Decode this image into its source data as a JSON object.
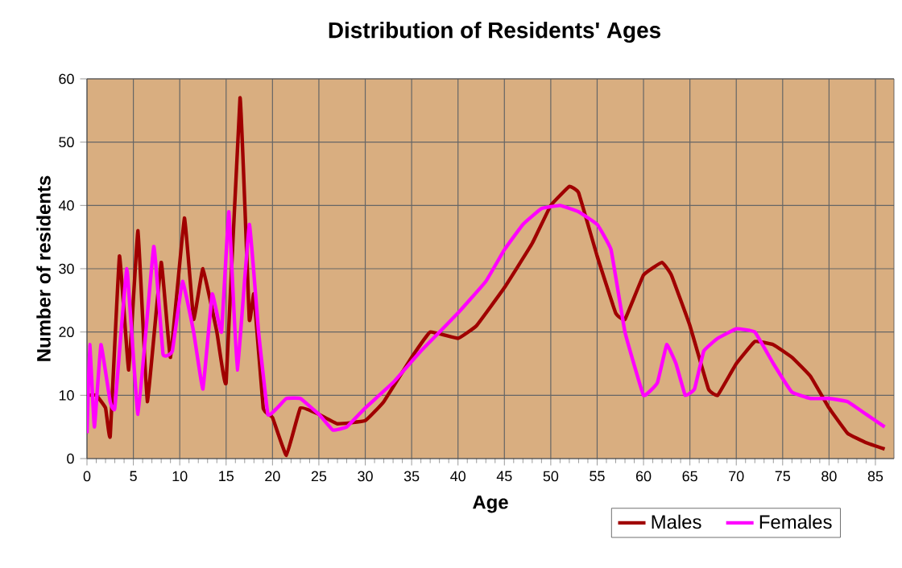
{
  "chart_data": {
    "type": "line",
    "title": "Distribution of Residents' Ages",
    "xlabel": "Age",
    "ylabel": "Number of residents",
    "xlim": [
      0,
      87
    ],
    "xticks": [
      0,
      5,
      10,
      15,
      20,
      25,
      30,
      35,
      40,
      45,
      50,
      55,
      60,
      65,
      70,
      75,
      80,
      85
    ],
    "ylim": [
      0,
      60
    ],
    "yticks": [
      0,
      10,
      20,
      30,
      40,
      50,
      60
    ],
    "grid": true,
    "legend": "bottom right",
    "marker": "none",
    "line_style": "solid",
    "series": [
      {
        "name": "Males",
        "color": "#a00000",
        "x": [
          0,
          1,
          2,
          2.5,
          3.5,
          4.5,
          5.5,
          6.5,
          8,
          9,
          10.5,
          11.5,
          12.5,
          14,
          15,
          16.5,
          17.5,
          18,
          19,
          20,
          21.5,
          23,
          25,
          27,
          30,
          32,
          35,
          37,
          40,
          42,
          45,
          48,
          50,
          52,
          53,
          55,
          57,
          58,
          60,
          62,
          63,
          65,
          67,
          68,
          70,
          72,
          74,
          76,
          78,
          80,
          82,
          84,
          86
        ],
        "values": [
          10,
          10,
          8,
          3.5,
          32,
          14,
          36,
          9,
          31,
          16,
          38,
          22,
          30,
          20,
          12,
          57,
          22,
          26,
          8,
          6.5,
          0.5,
          8,
          7,
          5.5,
          6,
          9,
          16,
          20,
          19,
          21,
          27,
          34,
          40,
          43,
          42,
          32,
          23,
          22,
          29,
          31,
          29,
          21,
          11,
          10,
          15,
          18.5,
          18,
          16,
          13,
          8,
          4,
          2.5,
          1.5
        ]
      },
      {
        "name": "Females",
        "color": "#ff00ff",
        "x": [
          0,
          0.3,
          0.8,
          1.5,
          2.5,
          3,
          4.3,
          5.5,
          7.2,
          8.2,
          9.2,
          10.3,
          11.5,
          12.5,
          13.5,
          14.5,
          15.3,
          16.2,
          17.5,
          18.5,
          19.5,
          20.5,
          21.5,
          23,
          25,
          26.5,
          28,
          30,
          33,
          36,
          40,
          43,
          45,
          47,
          49,
          51,
          53,
          55,
          56.5,
          58,
          60,
          61.5,
          62.5,
          63.5,
          64.5,
          65.5,
          66.5,
          68,
          70,
          72,
          74,
          76,
          78,
          80,
          82,
          84,
          86
        ],
        "values": [
          4,
          18,
          5,
          18,
          9,
          8,
          30,
          7,
          33.5,
          16.5,
          17,
          28,
          20,
          11,
          26,
          20,
          39,
          14,
          37,
          20,
          7,
          8,
          9.5,
          9.5,
          7,
          4.5,
          5,
          8,
          12,
          17,
          23,
          28,
          33,
          37,
          39.5,
          40,
          39,
          37,
          33,
          20,
          10,
          12,
          18,
          15,
          10,
          11,
          17,
          19,
          20.5,
          20,
          15,
          10.5,
          9.5,
          9.5,
          9,
          7,
          5
        ]
      }
    ]
  }
}
